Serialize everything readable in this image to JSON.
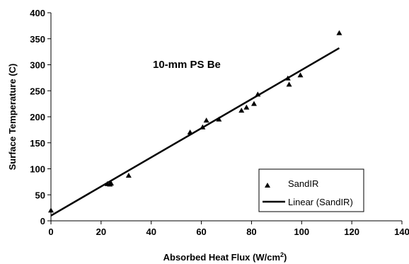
{
  "chart_data": {
    "type": "scatter",
    "title": "10-mm PS Be",
    "xlabel": "Absorbed Heat Flux (W/cm",
    "xlabel_sup": "2",
    "xlabel_end": ")",
    "ylabel": "Surface Temperature (C)",
    "xlim": [
      0,
      140
    ],
    "ylim": [
      0,
      400
    ],
    "xticks": [
      "0",
      "20",
      "40",
      "60",
      "80",
      "100",
      "120",
      "140"
    ],
    "yticks": [
      "0",
      "50",
      "100",
      "150",
      "200",
      "250",
      "300",
      "350",
      "400"
    ],
    "grid": false,
    "legend_position": "bottom-right",
    "series": [
      {
        "name": "SandIR",
        "marker": "triangle",
        "x": [
          0,
          22.5,
          23.5,
          24,
          31,
          55.5,
          60.5,
          62,
          67,
          76,
          78,
          81,
          82.5,
          94.5,
          95,
          99.5,
          115
        ],
        "y": [
          20,
          71,
          70,
          72,
          87,
          170,
          180,
          193,
          195,
          212,
          218,
          225,
          243,
          274,
          262,
          280,
          361
        ]
      },
      {
        "name": "Linear (SandIR)",
        "type": "line",
        "x": [
          0,
          115
        ],
        "y": [
          10,
          332
        ]
      }
    ]
  }
}
